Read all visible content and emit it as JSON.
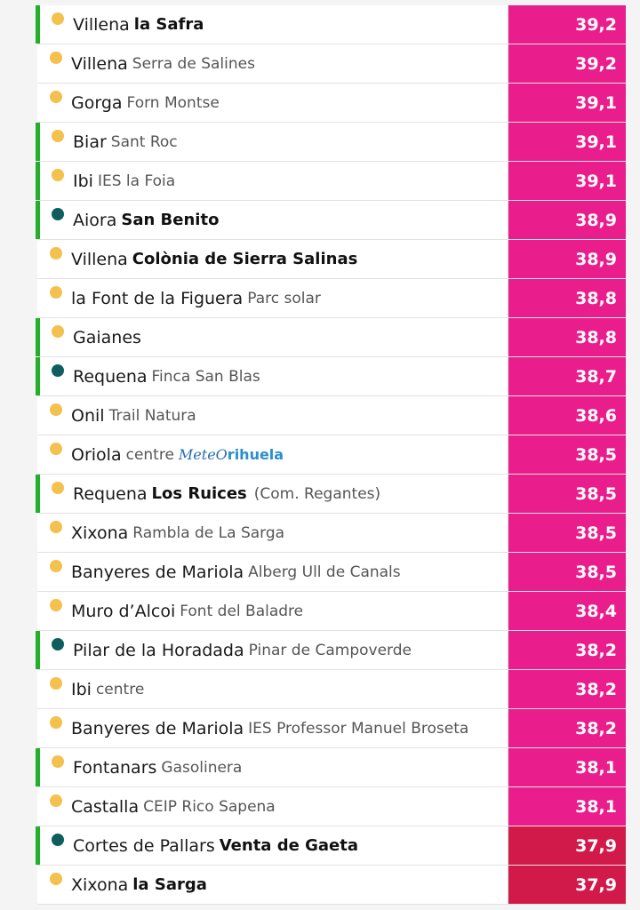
{
  "rows": [
    {
      "town": "Villena",
      "site": "la Safra",
      "site_bold": true,
      "dot": "yellow",
      "accent": true,
      "value": "39,2",
      "color": "#ea1d8d"
    },
    {
      "town": "Villena",
      "site": "Serra de Salines",
      "site_bold": false,
      "dot": "yellow",
      "accent": false,
      "value": "39,2",
      "color": "#ea1d8d"
    },
    {
      "town": "Gorga",
      "site": "Forn Montse",
      "site_bold": false,
      "dot": "yellow",
      "accent": false,
      "value": "39,1",
      "color": "#ea1d8d"
    },
    {
      "town": "Biar",
      "site": "Sant Roc",
      "site_bold": false,
      "dot": "yellow",
      "accent": true,
      "value": "39,1",
      "color": "#ea1d8d"
    },
    {
      "town": "Ibi",
      "site": "IES la Foia",
      "site_bold": false,
      "dot": "yellow",
      "accent": true,
      "value": "39,1",
      "color": "#ea1d8d"
    },
    {
      "town": "Aiora",
      "site": "San Benito",
      "site_bold": true,
      "dot": "teal",
      "accent": true,
      "value": "38,9",
      "color": "#ea1d8d"
    },
    {
      "town": "Villena",
      "site": "Colònia de Sierra Salinas",
      "site_bold": true,
      "dot": "yellow",
      "accent": false,
      "value": "38,9",
      "color": "#ea1d8d"
    },
    {
      "town": "la Font de la Figuera",
      "site": "Parc solar",
      "site_bold": false,
      "dot": "yellow",
      "accent": false,
      "value": "38,8",
      "color": "#ea1d8d"
    },
    {
      "town": "Gaianes",
      "site": "",
      "site_bold": false,
      "dot": "yellow",
      "accent": true,
      "value": "38,8",
      "color": "#ea1d8d"
    },
    {
      "town": "Requena",
      "site": "Finca San Blas",
      "site_bold": false,
      "dot": "teal",
      "accent": true,
      "value": "38,7",
      "color": "#ea1d8d"
    },
    {
      "town": "Onil",
      "site": "Trail Natura",
      "site_bold": false,
      "dot": "yellow",
      "accent": false,
      "value": "38,6",
      "color": "#ea1d8d"
    },
    {
      "town": "Oriola",
      "site": "centre",
      "site_bold": false,
      "dot": "yellow",
      "accent": false,
      "value": "38,5",
      "color": "#ea1d8d",
      "logo_a": "MeteO",
      "logo_b": "rihuela"
    },
    {
      "town": "Requena",
      "site": "Los Ruices",
      "site_bold": true,
      "dot": "yellow",
      "accent": true,
      "value": "38,5",
      "color": "#ea1d8d",
      "extra": "(Com. Regantes)"
    },
    {
      "town": "Xixona",
      "site": "Rambla de La Sarga",
      "site_bold": false,
      "dot": "yellow",
      "accent": false,
      "value": "38,5",
      "color": "#ea1d8d"
    },
    {
      "town": "Banyeres de Mariola",
      "site": "Alberg Ull de Canals",
      "site_bold": false,
      "dot": "yellow",
      "accent": false,
      "value": "38,5",
      "color": "#ea1d8d"
    },
    {
      "town": "Muro d’Alcoi",
      "site": "Font del Baladre",
      "site_bold": false,
      "dot": "yellow",
      "accent": false,
      "value": "38,4",
      "color": "#ea1d8d"
    },
    {
      "town": "Pilar de la Horadada",
      "site": "Pinar de Campoverde",
      "site_bold": false,
      "dot": "teal",
      "accent": true,
      "value": "38,2",
      "color": "#ea1d8d"
    },
    {
      "town": "Ibi",
      "site": "centre",
      "site_bold": false,
      "dot": "yellow",
      "accent": false,
      "value": "38,2",
      "color": "#ea1d8d"
    },
    {
      "town": "Banyeres de Mariola",
      "site": "IES Professor Manuel Broseta",
      "site_bold": false,
      "dot": "yellow",
      "accent": false,
      "value": "38,2",
      "color": "#ea1d8d"
    },
    {
      "town": "Fontanars",
      "site": "Gasolinera",
      "site_bold": false,
      "dot": "yellow",
      "accent": true,
      "value": "38,1",
      "color": "#ea1d8d"
    },
    {
      "town": "Castalla",
      "site": "CEIP Rico Sapena",
      "site_bold": false,
      "dot": "yellow",
      "accent": false,
      "value": "38,1",
      "color": "#ea1d8d"
    },
    {
      "town": "Cortes de Pallars",
      "site": "Venta de Gaeta",
      "site_bold": true,
      "dot": "teal",
      "accent": true,
      "value": "37,9",
      "color": "#d11a4a"
    },
    {
      "town": "Xixona",
      "site": "la Sarga",
      "site_bold": true,
      "dot": "yellow",
      "accent": false,
      "value": "37,9",
      "color": "#d11a4a"
    }
  ]
}
